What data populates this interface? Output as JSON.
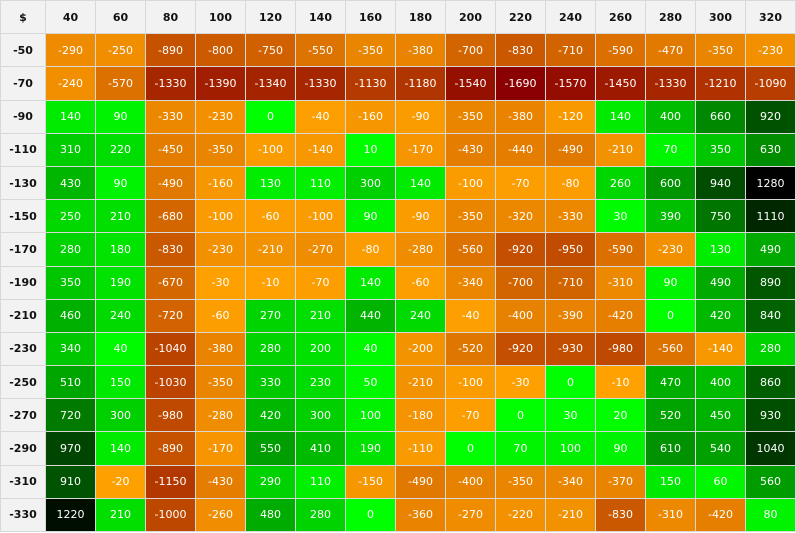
{
  "chart_data": {
    "type": "heatmap",
    "corner_label": "$",
    "x": [
      "40",
      "60",
      "80",
      "100",
      "120",
      "140",
      "160",
      "180",
      "200",
      "220",
      "240",
      "260",
      "280",
      "300",
      "320"
    ],
    "y": [
      "-50",
      "-70",
      "-90",
      "-110",
      "-130",
      "-150",
      "-170",
      "-190",
      "-210",
      "-230",
      "-250",
      "-270",
      "-290",
      "-310",
      "-330"
    ],
    "values": [
      [
        -290,
        -250,
        -890,
        -800,
        -750,
        -550,
        -350,
        -380,
        -700,
        -830,
        -710,
        -590,
        -470,
        -350,
        -230
      ],
      [
        -240,
        -570,
        -1330,
        -1390,
        -1340,
        -1330,
        -1130,
        -1180,
        -1540,
        -1690,
        -1570,
        -1450,
        -1330,
        -1210,
        -1090
      ],
      [
        140,
        90,
        -330,
        -230,
        0,
        -40,
        -160,
        -90,
        -350,
        -380,
        -120,
        140,
        400,
        660,
        920
      ],
      [
        310,
        220,
        -450,
        -350,
        -100,
        -140,
        10,
        -170,
        -430,
        -440,
        -490,
        -210,
        70,
        350,
        630
      ],
      [
        430,
        90,
        -490,
        -160,
        130,
        110,
        300,
        140,
        -100,
        -70,
        -80,
        260,
        600,
        940,
        1280
      ],
      [
        250,
        210,
        -680,
        -100,
        -60,
        -100,
        90,
        -90,
        -350,
        -320,
        -330,
        30,
        390,
        750,
        1110
      ],
      [
        280,
        180,
        -830,
        -230,
        -210,
        -270,
        -80,
        -280,
        -560,
        -920,
        -950,
        -590,
        -230,
        130,
        490
      ],
      [
        350,
        190,
        -670,
        -30,
        -10,
        -70,
        140,
        -60,
        -340,
        -700,
        -710,
        -310,
        90,
        490,
        890
      ],
      [
        460,
        240,
        -720,
        -60,
        270,
        210,
        440,
        240,
        -40,
        -400,
        -390,
        -420,
        0,
        420,
        840
      ],
      [
        340,
        40,
        -1040,
        -380,
        280,
        200,
        40,
        -200,
        -520,
        -920,
        -930,
        -980,
        -560,
        -140,
        280
      ],
      [
        510,
        150,
        -1030,
        -350,
        330,
        230,
        50,
        -210,
        -100,
        -30,
        0,
        -10,
        470,
        400,
        860
      ],
      [
        720,
        300,
        -980,
        -280,
        420,
        300,
        100,
        -180,
        -70,
        0,
        30,
        20,
        520,
        450,
        930
      ],
      [
        970,
        140,
        -890,
        -170,
        550,
        410,
        190,
        -110,
        0,
        70,
        100,
        90,
        610,
        540,
        1040
      ],
      [
        910,
        -20,
        -1150,
        -430,
        290,
        110,
        -150,
        -490,
        -400,
        -350,
        -340,
        -370,
        150,
        60,
        560
      ],
      [
        1220,
        210,
        -1000,
        -260,
        480,
        280,
        0,
        -360,
        -270,
        -220,
        -210,
        -830,
        -310,
        -420,
        80
      ]
    ],
    "color_scale": {
      "negative_light": "#ffa200",
      "negative_dark": "#8b0000",
      "positive_light": "#00ff00",
      "positive_dark": "#000000",
      "min": -1690,
      "max": 1280
    }
  }
}
